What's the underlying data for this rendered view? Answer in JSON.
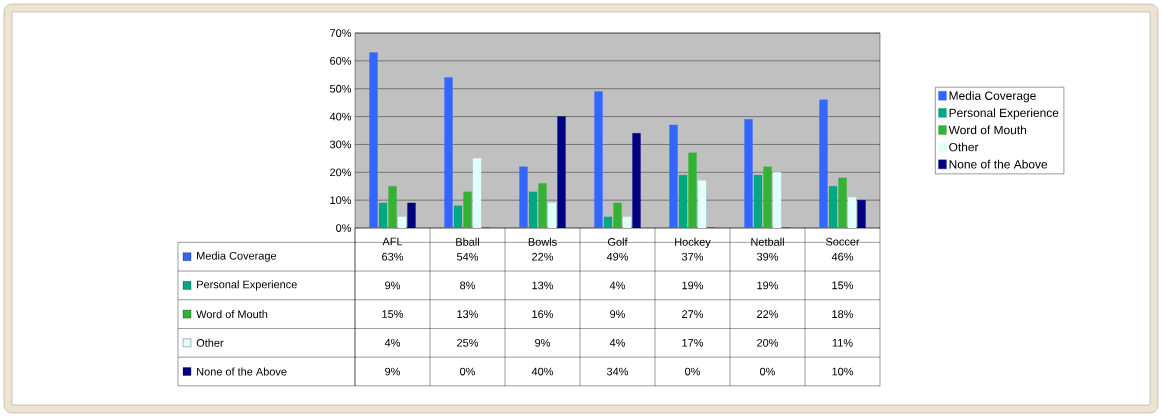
{
  "chart_data": {
    "type": "bar",
    "categories": [
      "AFL",
      "Bball",
      "Bowls",
      "Golf",
      "Hockey",
      "Netball",
      "Soccer"
    ],
    "series": [
      {
        "name": "Media Coverage",
        "color": "#3366ff",
        "values": [
          63,
          54,
          22,
          49,
          37,
          39,
          46
        ],
        "value_labels": [
          "63%",
          "54%",
          "22%",
          "49%",
          "37%",
          "39%",
          "46%"
        ]
      },
      {
        "name": "Personal Experience",
        "color": "#00a882",
        "values": [
          9,
          8,
          13,
          4,
          19,
          19,
          15
        ],
        "value_labels": [
          "9%",
          "8%",
          "13%",
          "4%",
          "19%",
          "19%",
          "15%"
        ]
      },
      {
        "name": "Word of Mouth",
        "color": "#33b233",
        "values": [
          15,
          13,
          16,
          9,
          27,
          22,
          18
        ],
        "value_labels": [
          "15%",
          "13%",
          "16%",
          "9%",
          "27%",
          "22%",
          "18%"
        ]
      },
      {
        "name": "Other",
        "color": "#e0ffff",
        "values": [
          4,
          25,
          9,
          4,
          17,
          20,
          11
        ],
        "value_labels": [
          "4%",
          "25%",
          "9%",
          "4%",
          "17%",
          "20%",
          "11%"
        ]
      },
      {
        "name": "None of the Above",
        "color": "#000080",
        "values": [
          9,
          0,
          40,
          34,
          0,
          0,
          10
        ],
        "value_labels": [
          "9%",
          "0%",
          "40%",
          "34%",
          "0%",
          "0%",
          "10%"
        ]
      }
    ],
    "ylim": [
      0,
      70
    ],
    "yticks": [
      {
        "value": 0,
        "label": "0%"
      },
      {
        "value": 10,
        "label": "10%"
      },
      {
        "value": 20,
        "label": "20%"
      },
      {
        "value": 30,
        "label": "30%"
      },
      {
        "value": 40,
        "label": "40%"
      },
      {
        "value": 50,
        "label": "50%"
      },
      {
        "value": 60,
        "label": "60%"
      },
      {
        "value": 70,
        "label": "70%"
      }
    ],
    "grid": "y",
    "legend": "right"
  }
}
